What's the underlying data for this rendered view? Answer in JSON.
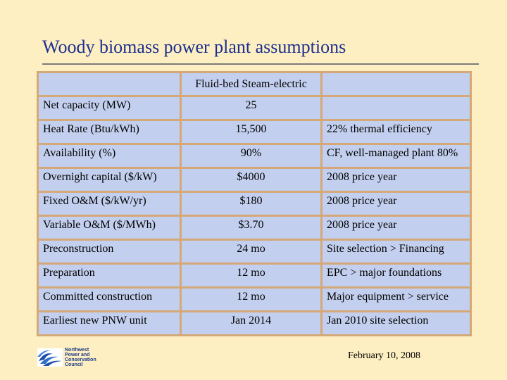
{
  "slide": {
    "title": "Woody biomass power plant assumptions",
    "date": "February 10, 2008"
  },
  "table": {
    "header": [
      "",
      "Fluid-bed Steam-electric",
      ""
    ],
    "rows": [
      [
        "Net capacity (MW)",
        "25",
        ""
      ],
      [
        "Heat Rate (Btu/kWh)",
        "15,500",
        "22% thermal efficiency"
      ],
      [
        "Availability (%)",
        "90%",
        "CF, well-managed plant 80%"
      ],
      [
        "Overnight capital ($/kW)",
        "$4000",
        "2008 price year"
      ],
      [
        "Fixed O&M ($/kW/yr)",
        "$180",
        "2008 price year"
      ],
      [
        "Variable O&M ($/MWh)",
        "$3.70",
        "2008 price year"
      ],
      [
        "Preconstruction",
        "24 mo",
        "Site selection > Financing"
      ],
      [
        "Preparation",
        "12 mo",
        "EPC > major foundations"
      ],
      [
        "Committed construction",
        "12 mo",
        "Major equipment > service"
      ],
      [
        "Earliest new PNW unit",
        "Jan 2014",
        "Jan 2010 site selection"
      ]
    ]
  },
  "logo": {
    "icon": "council-wave-logo-icon",
    "lines": [
      "Northwest",
      "Power and",
      "Conservation",
      "Council"
    ]
  }
}
